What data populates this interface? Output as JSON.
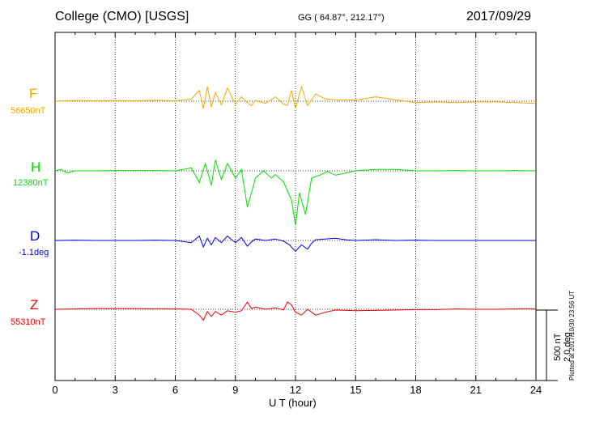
{
  "header": {
    "station": "College (CMO)  [USGS]",
    "coords": "GG ( 64.87°, 212.17°)",
    "date": "2017/09/29"
  },
  "footer": {
    "xlabel": "U T (hour)",
    "plotted": "Plotted at 2017/10/30 23:56 UT",
    "scale_line1": "500 nT",
    "scale_line2": "2.0 deg"
  },
  "channels": [
    {
      "name": "F",
      "value": "56650nT",
      "color": "#f5a800"
    },
    {
      "name": "H",
      "value": "12380nT",
      "color": "#00e000"
    },
    {
      "name": "D",
      "value": "-1.1deg",
      "color": "#0000e0"
    },
    {
      "name": "Z",
      "value": "55310nT",
      "color": "#ee0000"
    }
  ],
  "chart_data": {
    "type": "line",
    "x_ticks": [
      "0",
      "3",
      "6",
      "9",
      "12",
      "15",
      "18",
      "21",
      "24"
    ],
    "xlim": [
      0,
      24
    ],
    "grid": true,
    "series": [
      {
        "name": "F",
        "color": "#f5a800",
        "points": [
          [
            0,
            0
          ],
          [
            1,
            10
          ],
          [
            2,
            5
          ],
          [
            3,
            8
          ],
          [
            4,
            6
          ],
          [
            5,
            12
          ],
          [
            6,
            5
          ],
          [
            6.8,
            30
          ],
          [
            7.2,
            150
          ],
          [
            7.4,
            -100
          ],
          [
            7.6,
            200
          ],
          [
            7.8,
            -80
          ],
          [
            8,
            120
          ],
          [
            8.3,
            -50
          ],
          [
            8.6,
            180
          ],
          [
            9,
            -40
          ],
          [
            9.3,
            60
          ],
          [
            9.6,
            -20
          ],
          [
            9.8,
            -60
          ],
          [
            10,
            10
          ],
          [
            10.5,
            -30
          ],
          [
            11,
            60
          ],
          [
            11.4,
            -40
          ],
          [
            11.6,
            -60
          ],
          [
            11.8,
            150
          ],
          [
            12,
            -100
          ],
          [
            12.3,
            200
          ],
          [
            12.6,
            -60
          ],
          [
            13,
            100
          ],
          [
            13.5,
            30
          ],
          [
            14,
            20
          ],
          [
            15,
            15
          ],
          [
            16,
            60
          ],
          [
            17,
            20
          ],
          [
            18,
            -20
          ],
          [
            19,
            -10
          ],
          [
            20,
            -20
          ],
          [
            21,
            -10
          ],
          [
            22,
            -10
          ],
          [
            23,
            -20
          ],
          [
            24,
            -30
          ]
        ]
      },
      {
        "name": "H",
        "color": "#00e000",
        "points": [
          [
            0,
            0
          ],
          [
            0.3,
            20
          ],
          [
            0.6,
            -30
          ],
          [
            1,
            0
          ],
          [
            2,
            0
          ],
          [
            3,
            5
          ],
          [
            4,
            5
          ],
          [
            5,
            5
          ],
          [
            6,
            0
          ],
          [
            6.8,
            40
          ],
          [
            7.2,
            -160
          ],
          [
            7.5,
            100
          ],
          [
            7.8,
            -200
          ],
          [
            8,
            150
          ],
          [
            8.3,
            -120
          ],
          [
            8.6,
            100
          ],
          [
            9,
            -100
          ],
          [
            9.3,
            20
          ],
          [
            9.6,
            -500
          ],
          [
            9.8,
            -300
          ],
          [
            10,
            -100
          ],
          [
            10.4,
            0
          ],
          [
            10.8,
            -100
          ],
          [
            11,
            -50
          ],
          [
            11.4,
            -150
          ],
          [
            11.8,
            -400
          ],
          [
            12,
            -750
          ],
          [
            12.2,
            -300
          ],
          [
            12.5,
            -600
          ],
          [
            12.8,
            -100
          ],
          [
            13.2,
            -60
          ],
          [
            13.6,
            -10
          ],
          [
            14,
            -60
          ],
          [
            14.5,
            -30
          ],
          [
            15,
            0
          ],
          [
            16,
            20
          ],
          [
            17,
            20
          ],
          [
            18,
            0
          ],
          [
            19,
            0
          ],
          [
            20,
            5
          ],
          [
            21,
            0
          ],
          [
            22,
            0
          ],
          [
            23,
            5
          ],
          [
            24,
            0
          ]
        ]
      },
      {
        "name": "D",
        "color": "#0000e0",
        "points": [
          [
            0,
            0
          ],
          [
            1,
            5
          ],
          [
            2,
            0
          ],
          [
            3,
            0
          ],
          [
            4,
            0
          ],
          [
            5,
            5
          ],
          [
            6,
            0
          ],
          [
            6.8,
            -30
          ],
          [
            7.2,
            60
          ],
          [
            7.4,
            -90
          ],
          [
            7.6,
            30
          ],
          [
            7.8,
            -60
          ],
          [
            8,
            40
          ],
          [
            8.3,
            -30
          ],
          [
            8.6,
            60
          ],
          [
            9,
            -30
          ],
          [
            9.3,
            40
          ],
          [
            9.6,
            -80
          ],
          [
            9.8,
            -20
          ],
          [
            10,
            20
          ],
          [
            10.5,
            0
          ],
          [
            11,
            20
          ],
          [
            11.4,
            -10
          ],
          [
            11.7,
            -60
          ],
          [
            12,
            -150
          ],
          [
            12.3,
            -60
          ],
          [
            12.6,
            -120
          ],
          [
            12.8,
            -40
          ],
          [
            13,
            10
          ],
          [
            14,
            30
          ],
          [
            14.5,
            10
          ],
          [
            15,
            0
          ],
          [
            16,
            10
          ],
          [
            17,
            0
          ],
          [
            18,
            5
          ],
          [
            19,
            0
          ],
          [
            20,
            0
          ],
          [
            21,
            0
          ],
          [
            22,
            0
          ],
          [
            23,
            0
          ],
          [
            24,
            0
          ]
        ]
      },
      {
        "name": "Z",
        "color": "#ee0000",
        "points": [
          [
            0,
            0
          ],
          [
            1,
            5
          ],
          [
            2,
            10
          ],
          [
            3,
            10
          ],
          [
            4,
            10
          ],
          [
            5,
            5
          ],
          [
            6,
            5
          ],
          [
            6.8,
            0
          ],
          [
            7.2,
            -80
          ],
          [
            7.4,
            -150
          ],
          [
            7.6,
            -30
          ],
          [
            7.8,
            -100
          ],
          [
            8,
            -30
          ],
          [
            8.3,
            -80
          ],
          [
            8.6,
            -20
          ],
          [
            9,
            -40
          ],
          [
            9.3,
            -20
          ],
          [
            9.6,
            100
          ],
          [
            9.8,
            10
          ],
          [
            10,
            30
          ],
          [
            10.5,
            0
          ],
          [
            11,
            20
          ],
          [
            11.4,
            -10
          ],
          [
            11.6,
            100
          ],
          [
            11.8,
            60
          ],
          [
            12,
            -40
          ],
          [
            12.3,
            -80
          ],
          [
            12.6,
            0
          ],
          [
            13,
            -80
          ],
          [
            13.5,
            -40
          ],
          [
            14,
            -10
          ],
          [
            15,
            -20
          ],
          [
            16,
            -15
          ],
          [
            17,
            -10
          ],
          [
            18,
            -5
          ],
          [
            19,
            -5
          ],
          [
            20,
            5
          ],
          [
            21,
            0
          ],
          [
            22,
            0
          ],
          [
            23,
            5
          ],
          [
            24,
            5
          ]
        ]
      }
    ]
  }
}
